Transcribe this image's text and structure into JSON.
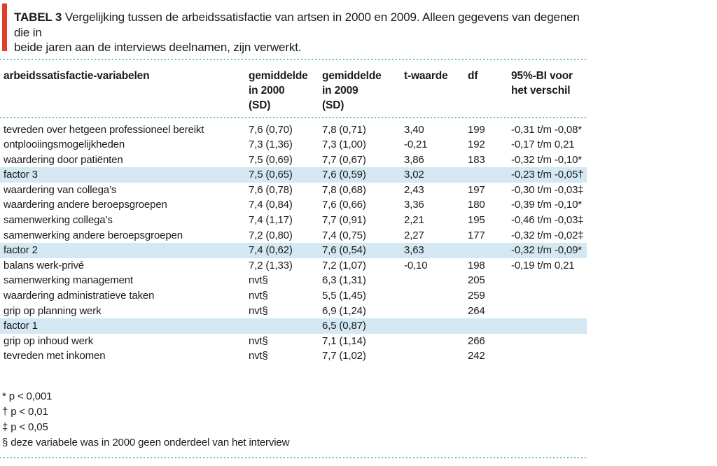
{
  "colors": {
    "accent_red": "#e23b2e",
    "dotted_rule": "#68b8ce",
    "row_highlight": "#d3e8f2"
  },
  "title": {
    "label": "TABEL 3",
    "text": "Vergelijking tussen de arbeidssatisfactie van artsen in 2000 en 2009. Alleen gegevens van degenen die in\nbeide jaren aan de interviews deelnamen, zijn verwerkt."
  },
  "table": {
    "columns": [
      "arbeidssatisfactie-variabelen",
      "gemiddelde\nin 2000\n(SD)",
      "gemiddelde\nin 2009\n(SD)",
      "t-waarde",
      "df",
      "95%-BI voor\nhet verschil"
    ],
    "rows": [
      {
        "name": "tevreden over hetgeen professioneel bereikt",
        "m2000": "7,6 (0,70)",
        "m2009": "7,8 (0,71)",
        "t": "3,40",
        "df": "199",
        "ci": "-0,31 t/m -0,08*",
        "hl": false
      },
      {
        "name": "ontplooiingsmogelijkheden",
        "m2000": "7,3 (1,36)",
        "m2009": "7,3 (1,00)",
        "t": "-0,21",
        "df": "192",
        "ci": "-0,17 t/m 0,21",
        "hl": false
      },
      {
        "name": "waardering door patiënten",
        "m2000": "7,5 (0,69)",
        "m2009": "7,7 (0,67)",
        "t": "3,86",
        "df": "183",
        "ci": "-0,32 t/m -0,10*",
        "hl": false
      },
      {
        "name": "factor 3",
        "m2000": "7,5 (0,65)",
        "m2009": "7,6 (0,59)",
        "t": "3,02",
        "df": "",
        "ci": "-0,23 t/m -0,05†",
        "hl": true
      },
      {
        "name": "waardering van collega’s",
        "m2000": "7,6 (0,78)",
        "m2009": "7,8 (0,68)",
        "t": "2,43",
        "df": "197",
        "ci": "-0,30 t/m -0,03‡",
        "hl": false
      },
      {
        "name": "waardering andere beroepsgroepen",
        "m2000": "7,4 (0,84)",
        "m2009": "7,6 (0,66)",
        "t": "3,36",
        "df": "180",
        "ci": "-0,39 t/m -0,10*",
        "hl": false
      },
      {
        "name": "samenwerking collega’s",
        "m2000": "7,4 (1,17)",
        "m2009": "7,7 (0,91)",
        "t": "2,21",
        "df": "195",
        "ci": "-0,46 t/m -0,03‡",
        "hl": false
      },
      {
        "name": "samenwerking andere beroepsgroepen",
        "m2000": "7,2 (0,80)",
        "m2009": "7,4 (0,75)",
        "t": "2,27",
        "df": "177",
        "ci": "-0,32 t/m -0,02‡",
        "hl": false
      },
      {
        "name": "factor 2",
        "m2000": "7,4 (0,62)",
        "m2009": "7,6 (0,54)",
        "t": "3,63",
        "df": "",
        "ci": "-0,32 t/m -0,09*",
        "hl": true
      },
      {
        "name": "balans werk-privé",
        "m2000": "7,2 (1,33)",
        "m2009": "7,2 (1,07)",
        "t": "-0,10",
        "df": "198",
        "ci": "-0,19 t/m 0,21",
        "hl": false
      },
      {
        "name": "samenwerking management",
        "m2000": "nvt§",
        "m2009": "6,3 (1,31)",
        "t": "",
        "df": "205",
        "ci": "",
        "hl": false
      },
      {
        "name": "waardering administratieve taken",
        "m2000": "nvt§",
        "m2009": "5,5 (1,45)",
        "t": "",
        "df": "259",
        "ci": "",
        "hl": false
      },
      {
        "name": "grip op planning werk",
        "m2000": "nvt§",
        "m2009": "6,9 (1,24)",
        "t": "",
        "df": "264",
        "ci": "",
        "hl": false
      },
      {
        "name": "factor 1",
        "m2000": "",
        "m2009": "6,5 (0,87)",
        "t": "",
        "df": "",
        "ci": "",
        "hl": true
      },
      {
        "name": "grip op inhoud werk",
        "m2000": "nvt§",
        "m2009": "7,1 (1,14)",
        "t": "",
        "df": "266",
        "ci": "",
        "hl": false
      },
      {
        "name": "tevreden met inkomen",
        "m2000": "nvt§",
        "m2009": "7,7 (1,02)",
        "t": "",
        "df": "242",
        "ci": "",
        "hl": false
      }
    ]
  },
  "footnotes": [
    "* p < 0,001",
    "† p < 0,01",
    "‡ p < 0,05",
    "§ deze variabele was in 2000 geen onderdeel van het interview"
  ]
}
